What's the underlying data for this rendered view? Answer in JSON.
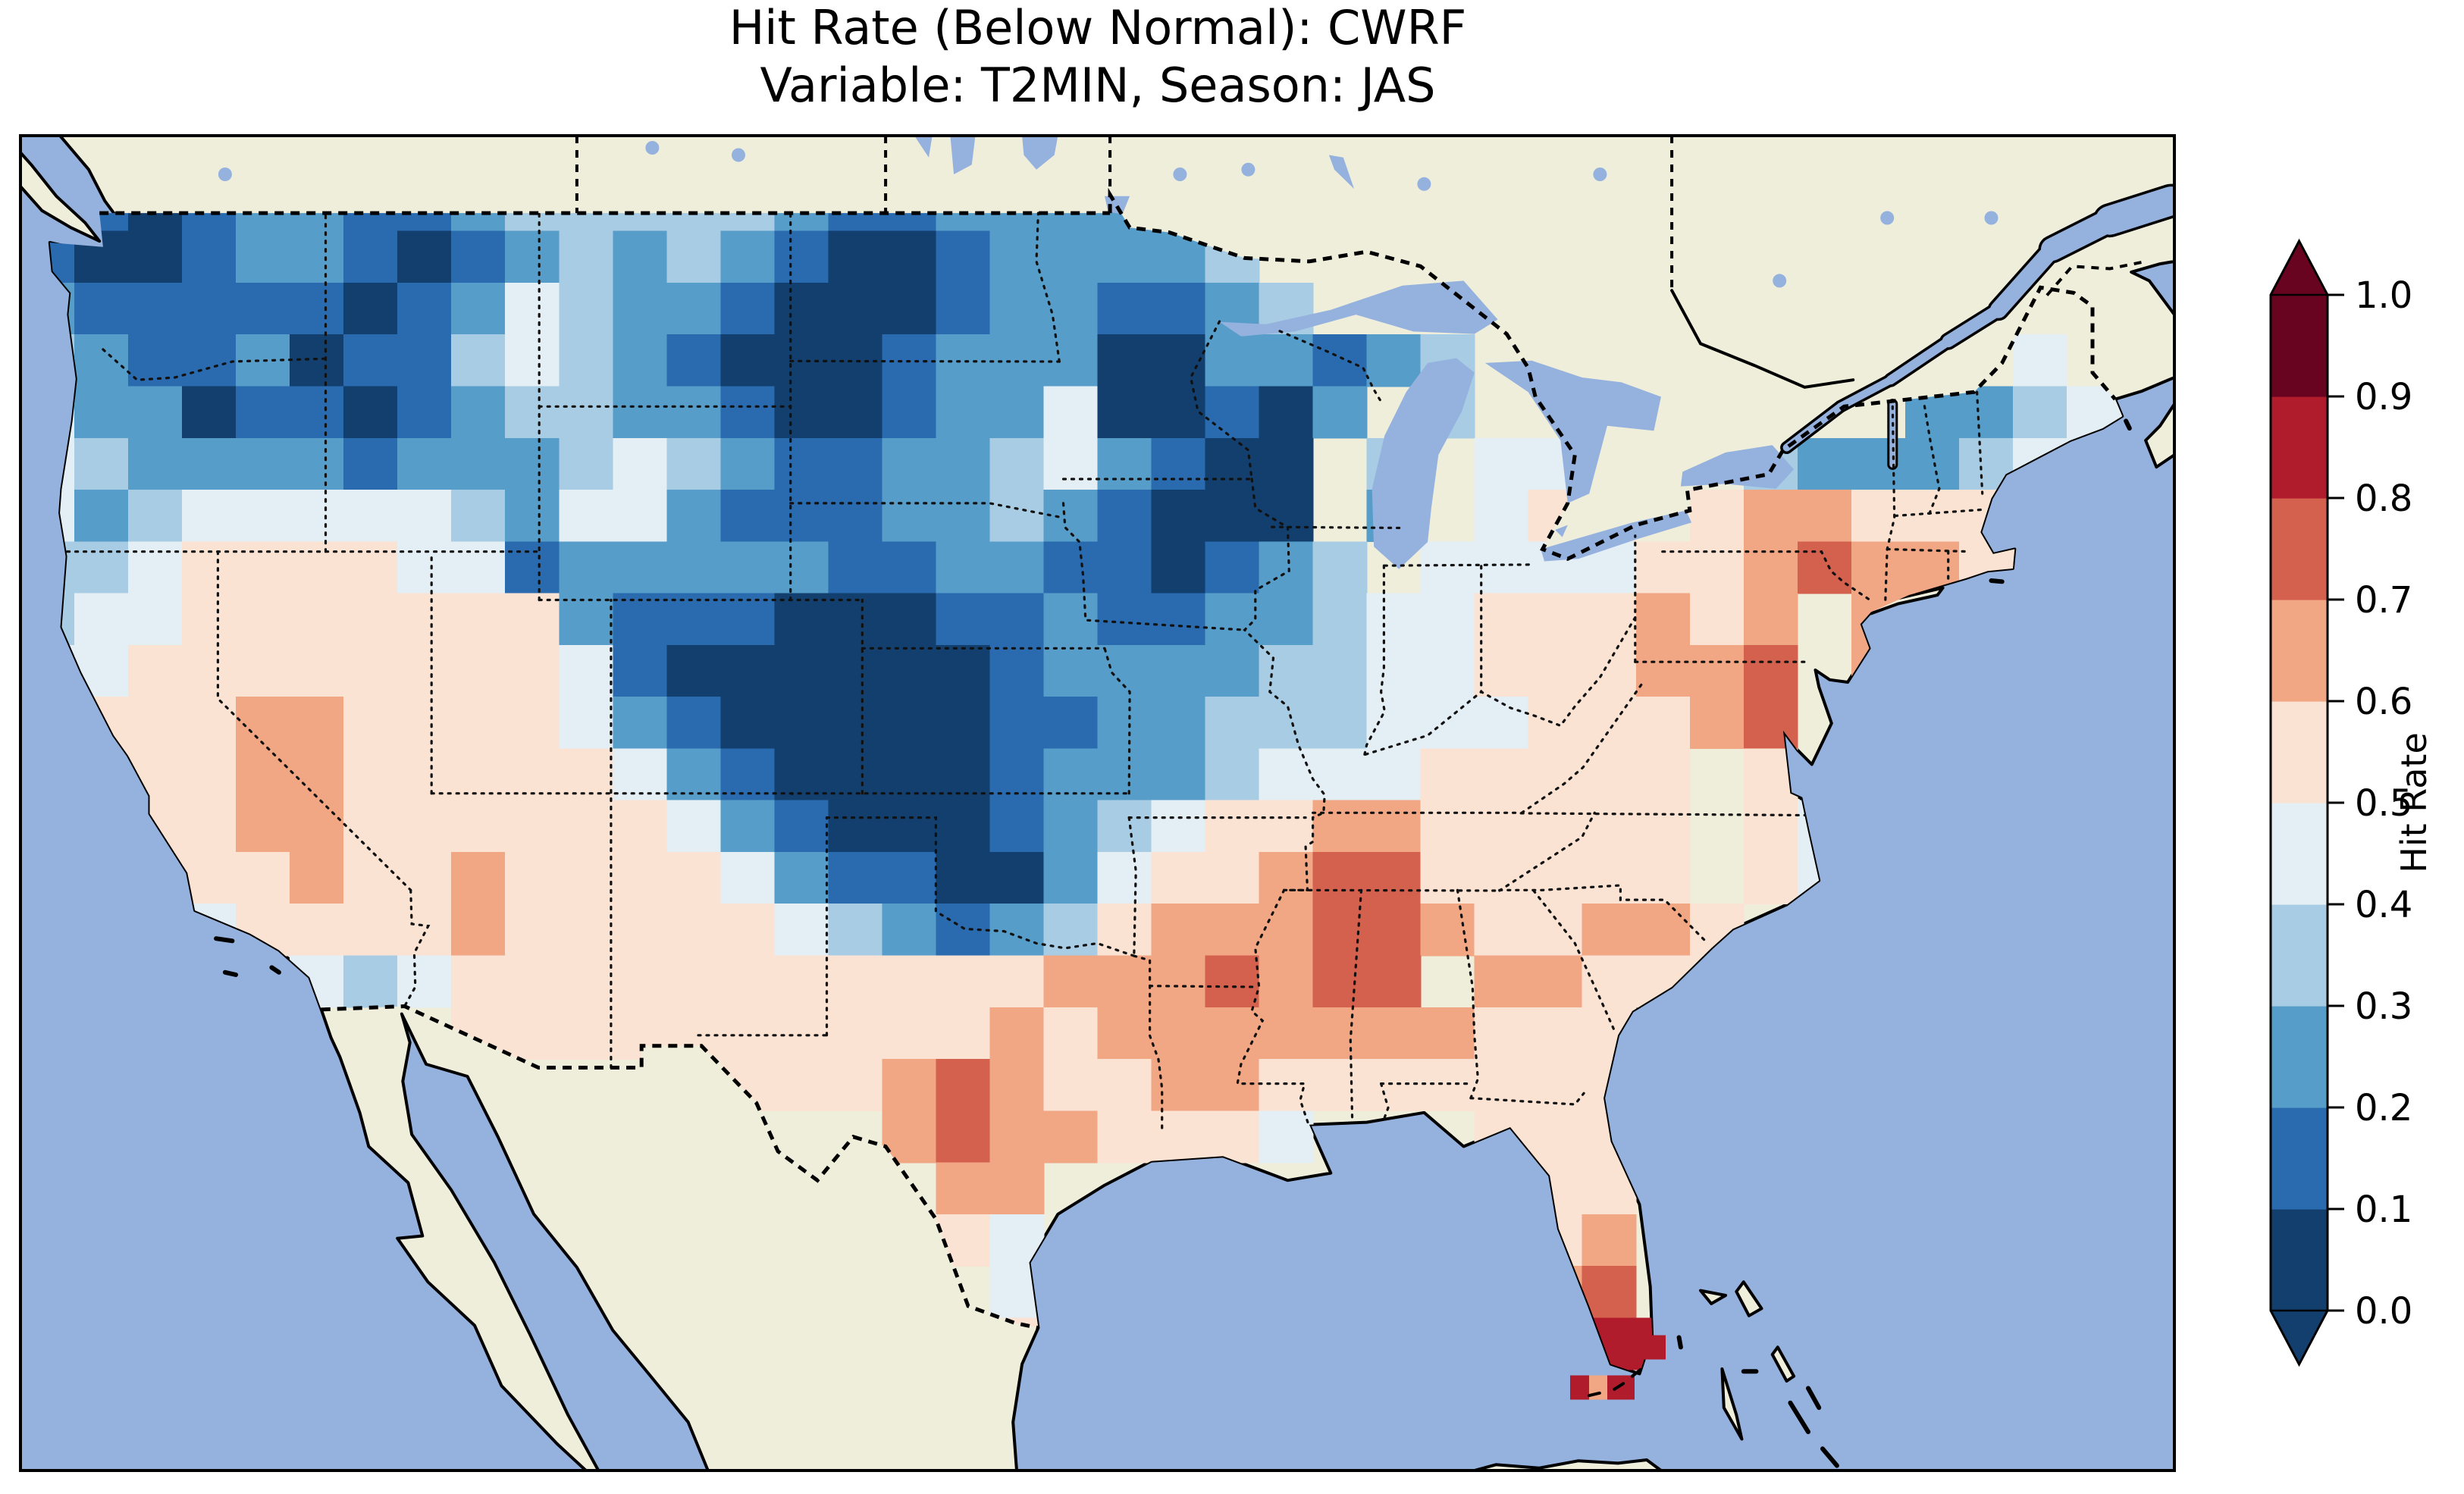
{
  "figure": {
    "title_line1": "Hit Rate (Below Normal): CWRF",
    "title_line2": "Variable: T2MIN, Season: JAS",
    "background": "#ffffff"
  },
  "chart_data": {
    "type": "heatmap",
    "title": "Hit Rate (Below Normal): CWRF",
    "subtitle": "Variable: T2MIN, Season: JAS",
    "model": "CWRF",
    "variable": "T2MIN",
    "season": "JAS",
    "metric": "Hit Rate (Below Normal)",
    "projection": "approx-plate-carree",
    "extent": {
      "lon_min": -125.5,
      "lon_max": -65.5,
      "lat_min": 23.0,
      "lat_max": 50.6
    },
    "colorbar": {
      "label": "Hit Rate",
      "orientation": "vertical",
      "extend": "both",
      "ticks": [
        0.0,
        0.1,
        0.2,
        0.3,
        0.4,
        0.5,
        0.6,
        0.7,
        0.8,
        0.9,
        1.0
      ],
      "tick_labels": [
        "0.0",
        "0.1",
        "0.2",
        "0.3",
        "0.4",
        "0.5",
        "0.6",
        "0.7",
        "0.8",
        "0.9",
        "1.0"
      ],
      "bin_edges": [
        0.0,
        0.1,
        0.2,
        0.3,
        0.4,
        0.5,
        0.6,
        0.7,
        0.8,
        0.9,
        1.0
      ],
      "bin_colors": [
        "#123f6d",
        "#2a6aae",
        "#579dc9",
        "#a8cce3",
        "#e4eef5",
        "#fbe3d4",
        "#f1a684",
        "#d4604e",
        "#b11c2d",
        "#690420"
      ],
      "under_color": "#123f6d",
      "over_color": "#690420"
    },
    "basemap_colors": {
      "ocean": "#95b1de",
      "lakes": "#95b1de",
      "land": "#efeedb",
      "coastline": "#000000",
      "state_borders": "#111111",
      "intl_borders": "#000000"
    },
    "grid": {
      "ncols": 40,
      "nrows": 24,
      "lon_start": -125.5,
      "dlon": 1.5,
      "lat_start": 49.7,
      "dlat": 1.07,
      "encoding": "each character is a hit-rate bin index 0-9 (bin i spans i/10 to (i+1)/10); '.' means no data (outside CONUS)",
      "rows": [
        "2101221123333321122223..................",
        "10012210123232100122223.................",
        "211111012432210001221123................",
        "321120113432100012220022123..........4..",
        "4220110123322100122400102 3........22344.",
        "432222122234321122342100 3.442..3222344..",
        "423444443244211122321000 2.455.56655555..",
        "3345555441222221122110123 444455676655...",
        "344555555521110001121122344555656 66.....",
        "445555555541000000122223344555667 66.....",
        "455566555542100000112233344455567 6......",
        ".555665555542100001222344455555 5.......",
        ".455665555554210001234556655555 54.......",
        "..55565565555421100245567755555 54........",
        "...45555655555432123566677655665.........",
        ".....434555555555556667677 66555.........",
        "........5555555555656666666555..........",
        ".............5556765566555555554.........",
        "................67665554...555..........",
        ".................66.........55..........",
        ".................54.........56..........",
        "..................4.........67..........",
        "..................5..........88.........",
        "........................................"
      ]
    },
    "extra_cells": [
      {
        "lon": -81.95,
        "lat": 24.72,
        "bin": 8
      },
      {
        "lon": -81.42,
        "lat": 24.72,
        "bin": 6
      },
      {
        "lon": -80.92,
        "lat": 24.72,
        "bin": 8
      },
      {
        "lon": -80.05,
        "lat": 25.55,
        "bin": 8
      }
    ]
  }
}
